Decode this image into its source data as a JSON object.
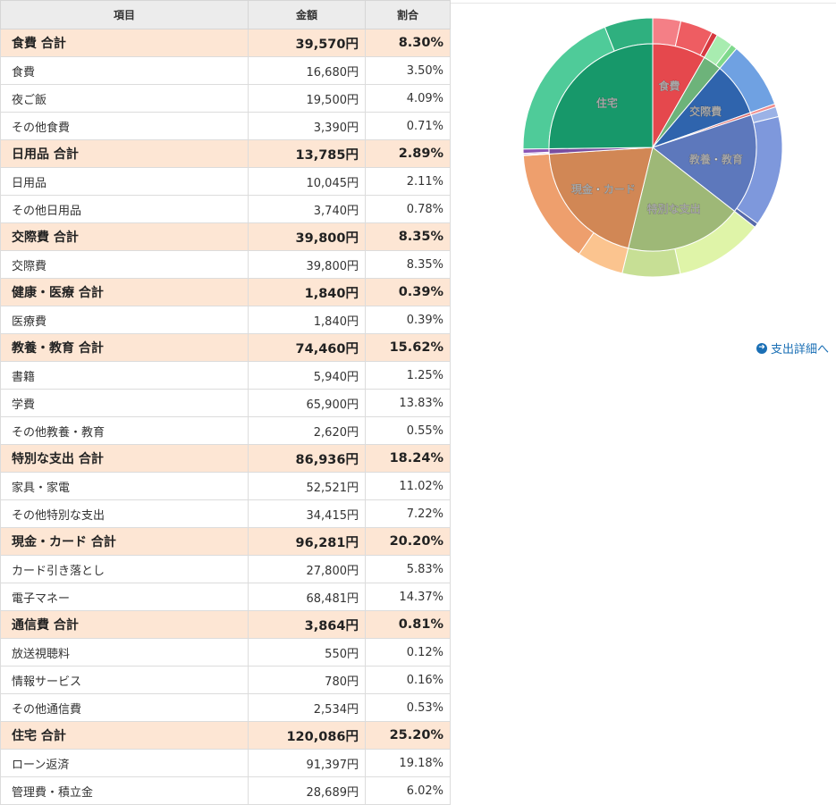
{
  "table": {
    "headers": {
      "item": "項目",
      "amount": "金額",
      "ratio": "割合"
    },
    "rows": [
      {
        "type": "total",
        "name": "食費 合計",
        "amount": "39,570円",
        "ratio": "8.30%"
      },
      {
        "type": "item",
        "name": "食費",
        "amount": "16,680円",
        "ratio": "3.50%"
      },
      {
        "type": "item",
        "name": "夜ご飯",
        "amount": "19,500円",
        "ratio": "4.09%"
      },
      {
        "type": "item",
        "name": "その他食費",
        "amount": "3,390円",
        "ratio": "0.71%"
      },
      {
        "type": "total",
        "name": "日用品 合計",
        "amount": "13,785円",
        "ratio": "2.89%"
      },
      {
        "type": "item",
        "name": "日用品",
        "amount": "10,045円",
        "ratio": "2.11%"
      },
      {
        "type": "item",
        "name": "その他日用品",
        "amount": "3,740円",
        "ratio": "0.78%"
      },
      {
        "type": "total",
        "name": "交際費 合計",
        "amount": "39,800円",
        "ratio": "8.35%"
      },
      {
        "type": "item",
        "name": "交際費",
        "amount": "39,800円",
        "ratio": "8.35%"
      },
      {
        "type": "total",
        "name": "健康・医療 合計",
        "amount": "1,840円",
        "ratio": "0.39%"
      },
      {
        "type": "item",
        "name": "医療費",
        "amount": "1,840円",
        "ratio": "0.39%"
      },
      {
        "type": "total",
        "name": "教養・教育 合計",
        "amount": "74,460円",
        "ratio": "15.62%"
      },
      {
        "type": "item",
        "name": "書籍",
        "amount": "5,940円",
        "ratio": "1.25%"
      },
      {
        "type": "item",
        "name": "学費",
        "amount": "65,900円",
        "ratio": "13.83%"
      },
      {
        "type": "item",
        "name": "その他教養・教育",
        "amount": "2,620円",
        "ratio": "0.55%"
      },
      {
        "type": "total",
        "name": "特別な支出 合計",
        "amount": "86,936円",
        "ratio": "18.24%"
      },
      {
        "type": "item",
        "name": "家具・家電",
        "amount": "52,521円",
        "ratio": "11.02%"
      },
      {
        "type": "item",
        "name": "その他特別な支出",
        "amount": "34,415円",
        "ratio": "7.22%"
      },
      {
        "type": "total",
        "name": "現金・カード 合計",
        "amount": "96,281円",
        "ratio": "20.20%"
      },
      {
        "type": "item",
        "name": "カード引き落とし",
        "amount": "27,800円",
        "ratio": "5.83%"
      },
      {
        "type": "item",
        "name": "電子マネー",
        "amount": "68,481円",
        "ratio": "14.37%"
      },
      {
        "type": "total",
        "name": "通信費 合計",
        "amount": "3,864円",
        "ratio": "0.81%"
      },
      {
        "type": "item",
        "name": "放送視聴料",
        "amount": "550円",
        "ratio": "0.12%"
      },
      {
        "type": "item",
        "name": "情報サービス",
        "amount": "780円",
        "ratio": "0.16%"
      },
      {
        "type": "item",
        "name": "その他通信費",
        "amount": "2,534円",
        "ratio": "0.53%"
      },
      {
        "type": "total",
        "name": "住宅 合計",
        "amount": "120,086円",
        "ratio": "25.20%"
      },
      {
        "type": "item",
        "name": "ローン返済",
        "amount": "91,397円",
        "ratio": "19.18%"
      },
      {
        "type": "item",
        "name": "管理費・積立金",
        "amount": "28,689円",
        "ratio": "6.02%"
      }
    ]
  },
  "detail_link": {
    "label": "支出詳細へ",
    "icon": "arrow-right-circle-icon"
  },
  "chart_data": {
    "type": "pie",
    "inner_series": [
      {
        "name": "食費",
        "value": 8.3,
        "color": "#e5484d",
        "labeled": true
      },
      {
        "name": "日用品",
        "value": 2.89,
        "color": "#6db37a",
        "labeled": false
      },
      {
        "name": "交際費",
        "value": 8.35,
        "color": "#2f64ad",
        "labeled": true
      },
      {
        "name": "健康・医療",
        "value": 0.39,
        "color": "#e07070",
        "labeled": false
      },
      {
        "name": "教養・教育",
        "value": 15.62,
        "color": "#5d78bc",
        "labeled": true
      },
      {
        "name": "特別な支出",
        "value": 18.24,
        "color": "#9eb877",
        "labeled": true
      },
      {
        "name": "現金・カード",
        "value": 20.2,
        "color": "#d18755",
        "labeled": true
      },
      {
        "name": "通信費",
        "value": 0.81,
        "color": "#7a4ea0",
        "labeled": false
      },
      {
        "name": "住宅",
        "value": 25.2,
        "color": "#17986a",
        "labeled": true
      }
    ],
    "outer_series": [
      {
        "value": 3.5,
        "color": "#f47f86"
      },
      {
        "value": 4.09,
        "color": "#ee5d62"
      },
      {
        "value": 0.71,
        "color": "#d6383f"
      },
      {
        "value": 2.11,
        "color": "#a8ecb0"
      },
      {
        "value": 0.78,
        "color": "#7fd98c"
      },
      {
        "value": 8.35,
        "color": "#6fa1e2"
      },
      {
        "value": 0.39,
        "color": "#f08c8c"
      },
      {
        "value": 1.25,
        "color": "#9bb2e6"
      },
      {
        "value": 13.83,
        "color": "#7e98dc"
      },
      {
        "value": 0.55,
        "color": "#5669a9"
      },
      {
        "value": 11.02,
        "color": "#dff4a8"
      },
      {
        "value": 7.22,
        "color": "#c7df95"
      },
      {
        "value": 5.83,
        "color": "#fbc48f"
      },
      {
        "value": 14.37,
        "color": "#ee9f6d"
      },
      {
        "value": 0.12,
        "color": "#c79be6"
      },
      {
        "value": 0.16,
        "color": "#a978d0"
      },
      {
        "value": 0.53,
        "color": "#8a55b5"
      },
      {
        "value": 19.18,
        "color": "#4fcb99"
      },
      {
        "value": 6.02,
        "color": "#2fb07f"
      }
    ]
  }
}
